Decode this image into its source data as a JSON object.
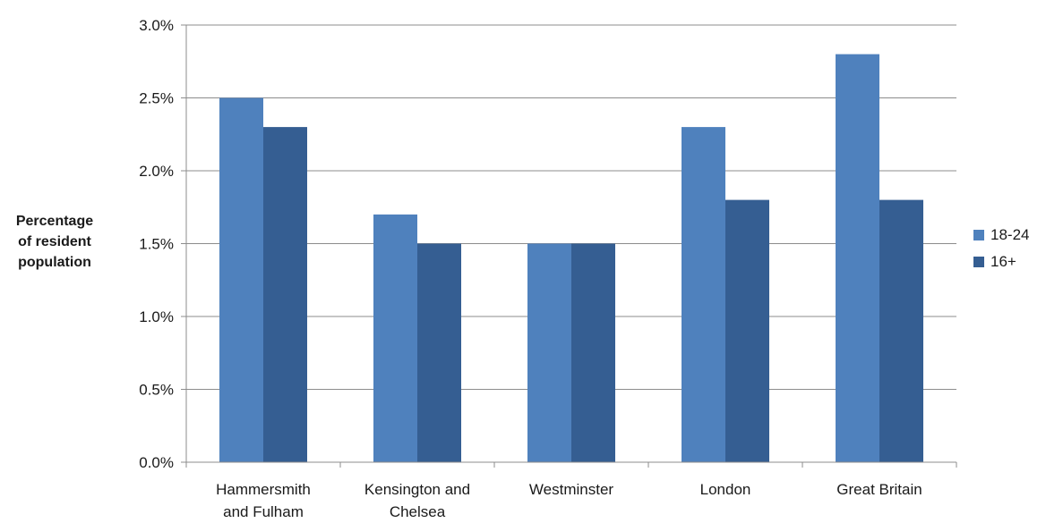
{
  "chart_data": {
    "type": "bar",
    "categories": [
      [
        "Hammersmith",
        "and Fulham"
      ],
      [
        "Kensington and",
        "Chelsea"
      ],
      [
        "Westminster"
      ],
      [
        "London"
      ],
      [
        "Great Britain"
      ]
    ],
    "series": [
      {
        "name": "18-24",
        "color": "#4f81bd",
        "values": [
          2.5,
          1.7,
          1.5,
          2.3,
          2.8
        ]
      },
      {
        "name": "16+",
        "color": "#355e92",
        "values": [
          2.3,
          1.5,
          1.5,
          1.8,
          1.8
        ]
      }
    ],
    "ylabel": [
      "Percentage",
      "of resident",
      "population"
    ],
    "ylim": [
      0,
      3.0
    ],
    "yticks": [
      "0.0%",
      "0.5%",
      "1.0%",
      "1.5%",
      "2.0%",
      "2.5%",
      "3.0%"
    ],
    "grid": true,
    "legend_position": "right"
  }
}
